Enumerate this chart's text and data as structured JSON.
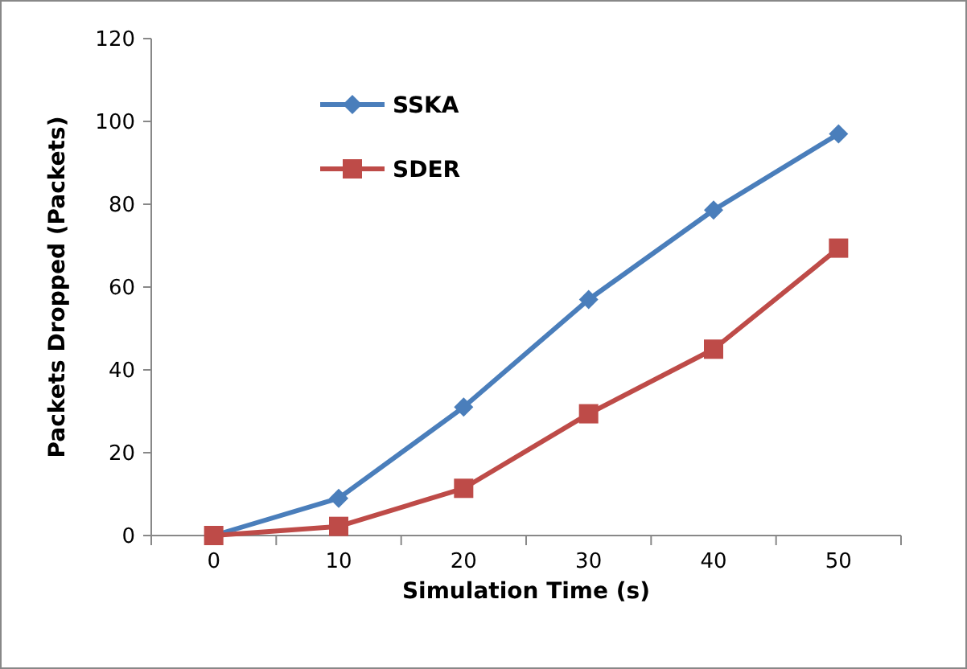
{
  "chart_data": {
    "type": "line",
    "xlabel": "Simulation Time (s)",
    "ylabel": "Packets Dropped (Packets)",
    "categories": [
      "0",
      "10",
      "20",
      "30",
      "40",
      "50"
    ],
    "ylim": [
      0,
      120
    ],
    "yticks": [
      0,
      20,
      40,
      60,
      80,
      100,
      120
    ],
    "grid": false,
    "legend": "top left",
    "series": [
      {
        "name": "SSKA",
        "color": "#4a7ebb",
        "marker": "diamond",
        "values": [
          0,
          9,
          31,
          57,
          78.6,
          97
        ]
      },
      {
        "name": "SDER",
        "color": "#be4b48",
        "marker": "square",
        "values": [
          0,
          2.2,
          11.4,
          29.4,
          45,
          69.4
        ]
      }
    ]
  }
}
